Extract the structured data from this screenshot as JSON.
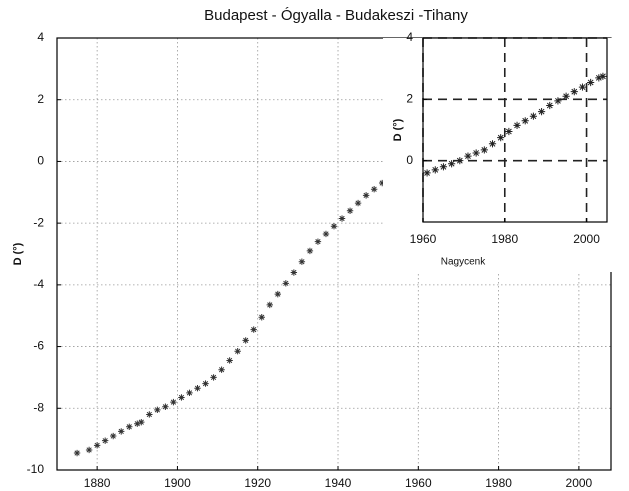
{
  "chart_data": [
    {
      "type": "scatter",
      "title": "Budapest - Ógyalla - Budakeszi -Tihany",
      "ylabel": "D (°)",
      "x": [
        1875,
        1878,
        1880,
        1882,
        1884,
        1886,
        1888,
        1890,
        1891,
        1893,
        1895,
        1897,
        1899,
        1901,
        1903,
        1905,
        1907,
        1909,
        1911,
        1913,
        1915,
        1917,
        1919,
        1921,
        1923,
        1925,
        1927,
        1929,
        1931,
        1933,
        1935,
        1937,
        1939,
        1941,
        1943,
        1945,
        1947,
        1949,
        1951,
        1953,
        1955,
        1957,
        1959,
        1961,
        1963
      ],
      "values": [
        -9.45,
        -9.35,
        -9.2,
        -9.05,
        -8.9,
        -8.75,
        -8.6,
        -8.5,
        -8.45,
        -8.2,
        -8.05,
        -7.95,
        -7.8,
        -7.65,
        -7.5,
        -7.35,
        -7.2,
        -7.0,
        -6.75,
        -6.45,
        -6.15,
        -5.8,
        -5.45,
        -5.05,
        -4.65,
        -4.3,
        -3.95,
        -3.6,
        -3.25,
        -2.9,
        -2.6,
        -2.35,
        -2.1,
        -1.85,
        -1.6,
        -1.35,
        -1.1,
        -0.9,
        -0.7,
        -0.5,
        -0.35,
        -0.2,
        -0.1,
        0.0,
        0.05
      ],
      "color": "#333333",
      "xlim": [
        1870,
        2008
      ],
      "xticks": [
        1880,
        1900,
        1920,
        1940,
        1960,
        1980,
        2000
      ],
      "ylim": [
        -10,
        4
      ],
      "yticks": [
        -10,
        -8,
        -6,
        -4,
        -2,
        0,
        2,
        4
      ],
      "grid": true,
      "grid_style": "dotted"
    },
    {
      "type": "scatter",
      "xlabel": "Nagycenk",
      "ylabel": "D (°)",
      "x": [
        1961,
        1963,
        1965,
        1967,
        1969,
        1971,
        1973,
        1975,
        1977,
        1979,
        1981,
        1983,
        1985,
        1987,
        1989,
        1991,
        1993,
        1995,
        1997,
        1999,
        2001,
        2003,
        2004
      ],
      "values": [
        -0.4,
        -0.3,
        -0.2,
        -0.1,
        0.0,
        0.15,
        0.25,
        0.35,
        0.55,
        0.75,
        0.95,
        1.15,
        1.3,
        1.45,
        1.6,
        1.8,
        1.95,
        2.1,
        2.25,
        2.4,
        2.55,
        2.7,
        2.75
      ],
      "color": "#222222",
      "xlim": [
        1960,
        2005
      ],
      "xticks": [
        1960,
        1980,
        2000
      ],
      "ylim": [
        -2,
        4
      ],
      "yticks": [
        0,
        2,
        4
      ],
      "grid": true,
      "grid_style": "dashed"
    }
  ]
}
